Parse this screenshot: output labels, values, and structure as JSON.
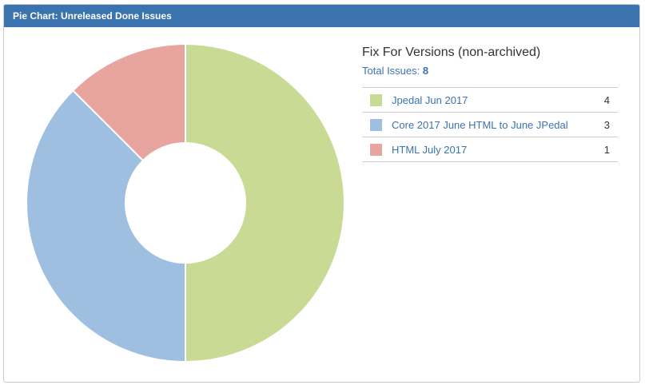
{
  "gadget": {
    "title": "Pie Chart: Unreleased Done Issues"
  },
  "legend": {
    "title": "Fix For Versions (non-archived)",
    "total_label": "Total Issues:",
    "total_count": "8"
  },
  "chart_data": {
    "type": "pie",
    "donut": true,
    "categories": [
      "Jpedal Jun 2017",
      "Core 2017 June HTML to June JPedal",
      "HTML July 2017"
    ],
    "values": [
      4,
      3,
      1
    ],
    "colors": [
      "#c8da93",
      "#9fbfe1",
      "#e8a5a0"
    ],
    "title": ""
  },
  "rows": [
    {
      "label": "Jpedal Jun 2017",
      "count": "4",
      "color": "#c8da93"
    },
    {
      "label": "Core 2017 June HTML to June JPedal",
      "count": "3",
      "color": "#9fbfe1"
    },
    {
      "label": "HTML July 2017",
      "count": "1",
      "color": "#e8a5a0"
    }
  ]
}
